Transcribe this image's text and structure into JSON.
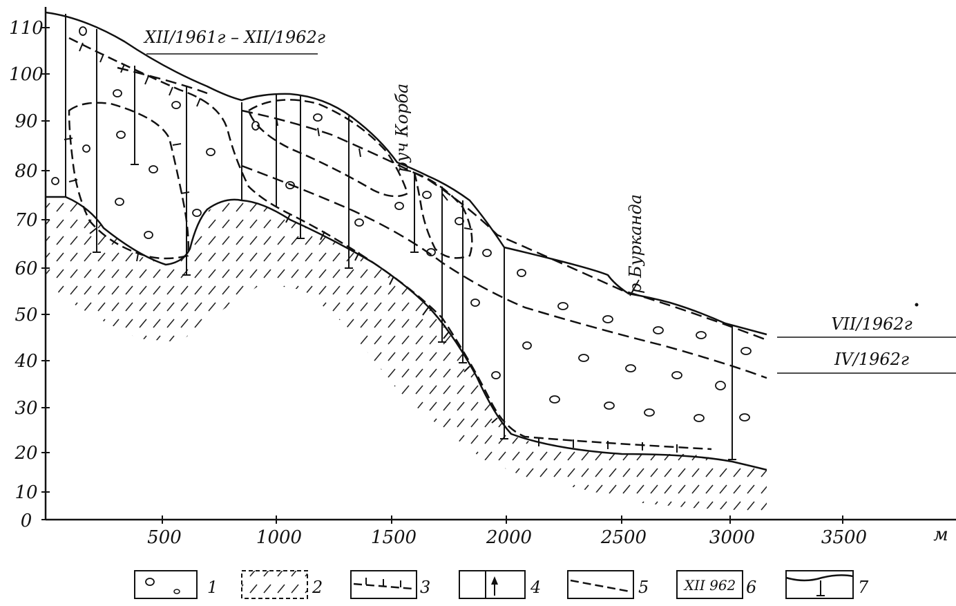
{
  "diagram": {
    "y_axis": {
      "ticks": [
        "0",
        "10",
        "20",
        "30",
        "40",
        "50",
        "60",
        "70",
        "80",
        "90",
        "100",
        "110"
      ]
    },
    "x_axis": {
      "ticks": [
        "500",
        "1000",
        "1500",
        "2000",
        "2500",
        "3000",
        "3500"
      ],
      "unit": "м"
    },
    "period_label": "XII/1961г – XII/1962г",
    "water_level_labels": [
      "VII/1962г",
      "IV/1962г"
    ],
    "stream_labels": [
      "руч Корба",
      "р Бурканда"
    ],
    "legend": [
      {
        "number": "1",
        "sample": "о"
      },
      {
        "number": "2",
        "sample": ""
      },
      {
        "number": "3",
        "sample": ""
      },
      {
        "number": "4",
        "sample": ""
      },
      {
        "number": "5",
        "sample": ""
      },
      {
        "number": "6",
        "sample": "XII 962"
      },
      {
        "number": "7",
        "sample": ""
      }
    ]
  }
}
